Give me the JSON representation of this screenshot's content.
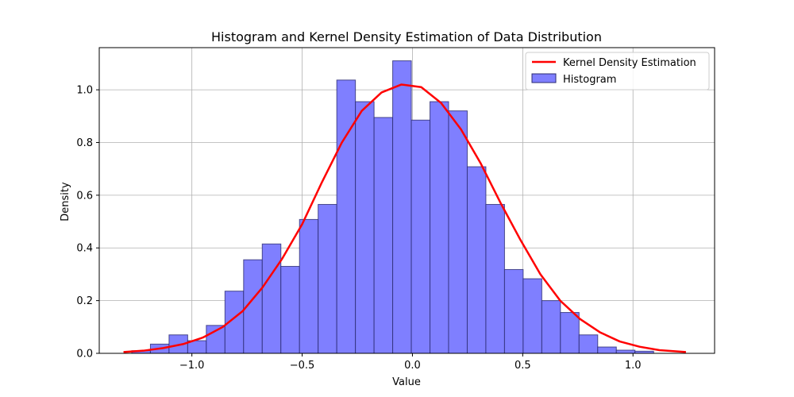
{
  "chart_data": {
    "type": "bar",
    "title": "Histogram and Kernel Density Estimation of Data Distribution",
    "xlabel": "Value",
    "ylabel": "Density",
    "xlim": [
      -1.42,
      1.37
    ],
    "ylim": [
      0,
      1.16
    ],
    "x_ticks": [
      -1.0,
      -0.5,
      0.0,
      0.5,
      1.0
    ],
    "x_tick_labels": [
      "−1.0",
      "−0.5",
      "0.0",
      "0.5",
      "1.0"
    ],
    "y_ticks": [
      0.0,
      0.2,
      0.4,
      0.6,
      0.8,
      1.0
    ],
    "y_tick_labels": [
      "0.0",
      "0.2",
      "0.4",
      "0.6",
      "0.8",
      "1.0"
    ],
    "grid": true,
    "legend_position": "top-right",
    "histogram": {
      "name": "Histogram",
      "color": "#7f7fff",
      "edge_color": "#2b2b70",
      "bin_edges": [
        -1.2725,
        -1.188,
        -1.1035,
        -1.019,
        -0.9345,
        -0.85,
        -0.7655,
        -0.681,
        -0.5965,
        -0.512,
        -0.4275,
        -0.343,
        -0.2585,
        -0.174,
        -0.0895,
        -0.005,
        0.0795,
        0.164,
        0.2485,
        0.333,
        0.4175,
        0.502,
        0.5865,
        0.671,
        0.7555,
        0.84,
        0.9245,
        1.009,
        1.0935,
        1.178
      ],
      "values": [
        0.01,
        0.035,
        0.07,
        0.048,
        0.106,
        0.236,
        0.355,
        0.415,
        0.33,
        0.508,
        0.565,
        1.037,
        0.955,
        0.895,
        1.11,
        0.885,
        0.955,
        0.92,
        0.708,
        0.565,
        0.318,
        0.283,
        0.2,
        0.155,
        0.07,
        0.024,
        0.012,
        0.008,
        0.0
      ]
    },
    "kde": {
      "name": "Kernel Density Estimation",
      "color": "#ff0000",
      "x": [
        -1.31,
        -1.22,
        -1.13,
        -1.04,
        -0.95,
        -0.86,
        -0.77,
        -0.68,
        -0.59,
        -0.5,
        -0.41,
        -0.32,
        -0.23,
        -0.14,
        -0.05,
        0.04,
        0.13,
        0.22,
        0.31,
        0.4,
        0.49,
        0.58,
        0.67,
        0.76,
        0.85,
        0.94,
        1.03,
        1.12,
        1.24
      ],
      "y": [
        0.005,
        0.01,
        0.02,
        0.035,
        0.06,
        0.1,
        0.16,
        0.25,
        0.36,
        0.49,
        0.65,
        0.8,
        0.92,
        0.99,
        1.02,
        1.01,
        0.95,
        0.85,
        0.72,
        0.57,
        0.43,
        0.3,
        0.2,
        0.13,
        0.08,
        0.045,
        0.025,
        0.012,
        0.005
      ]
    }
  }
}
